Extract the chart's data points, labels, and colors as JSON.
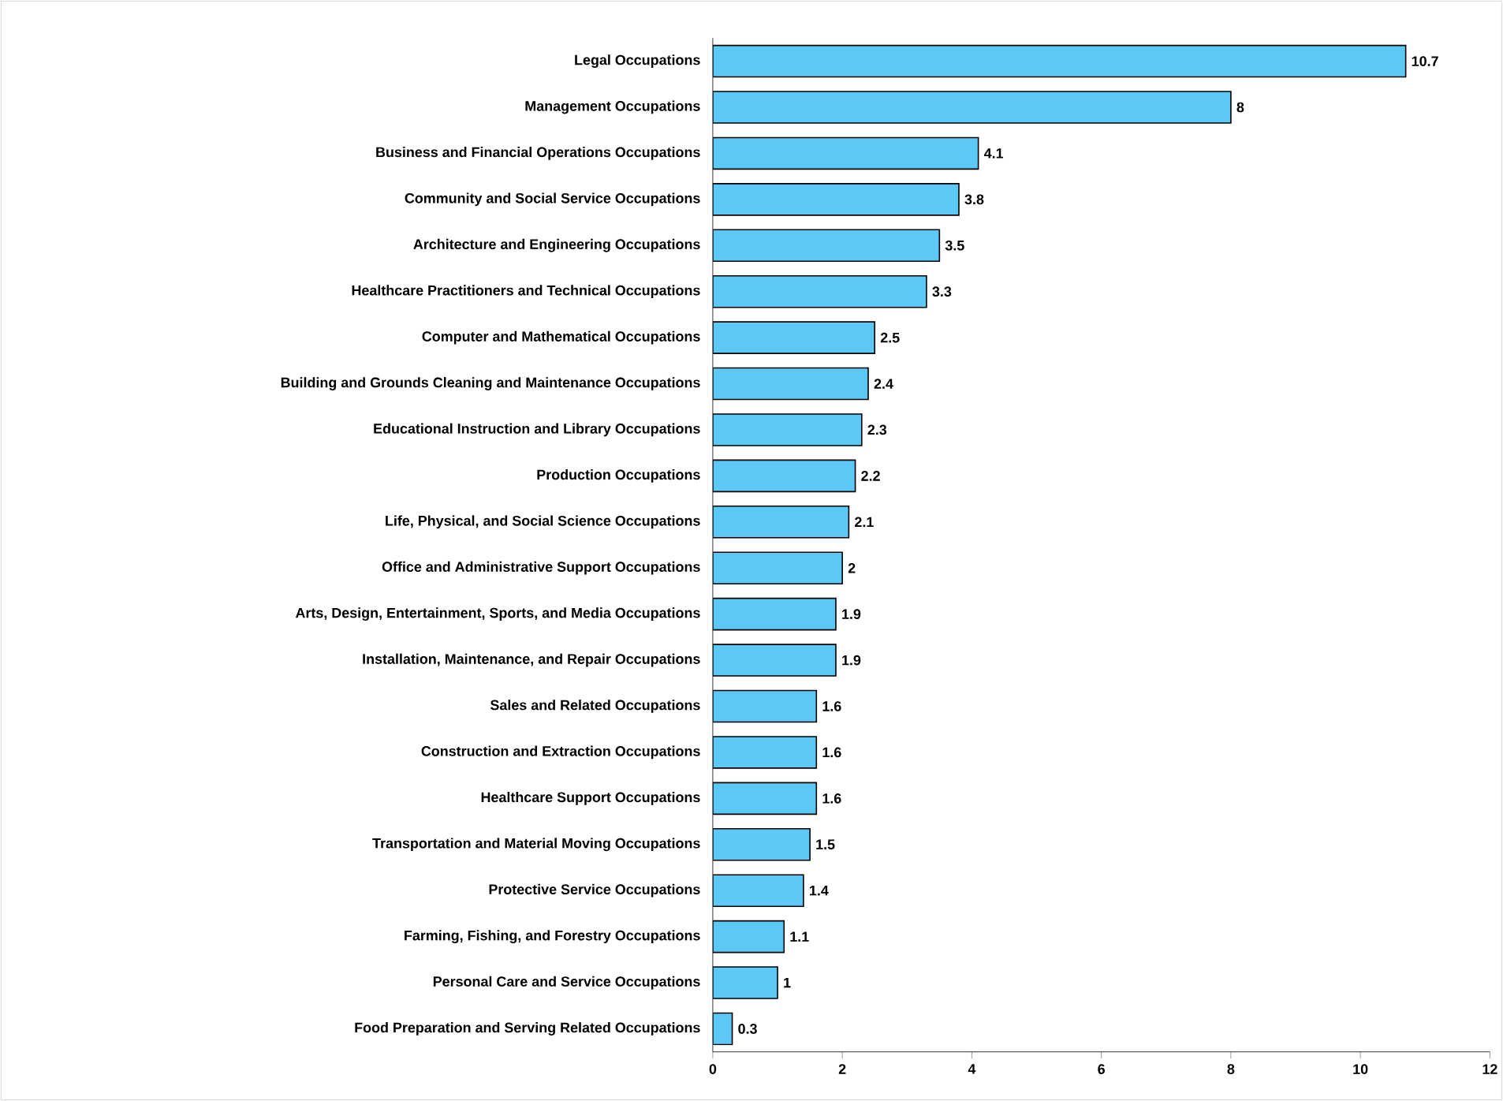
{
  "chart_data": {
    "type": "bar",
    "orientation": "horizontal",
    "data_labels": true,
    "color": "#5bc8f5",
    "categories": [
      "Legal Occupations",
      "Management Occupations",
      "Business and Financial Operations Occupations",
      "Community and Social Service Occupations",
      "Architecture and Engineering Occupations",
      "Healthcare Practitioners and Technical Occupations",
      "Computer and Mathematical Occupations",
      "Building and Grounds Cleaning and Maintenance Occupations",
      "Educational Instruction and Library Occupations",
      "Production Occupations",
      "Life, Physical, and Social Science Occupations",
      "Office and Administrative Support Occupations",
      "Arts, Design, Entertainment, Sports, and Media Occupations",
      "Installation, Maintenance, and Repair Occupations",
      "Sales and Related Occupations",
      "Construction and Extraction Occupations",
      "Healthcare Support Occupations",
      "Transportation and Material Moving Occupations",
      "Protective Service Occupations",
      "Farming, Fishing, and Forestry Occupations",
      "Personal Care and Service Occupations",
      "Food Preparation and Serving Related Occupations"
    ],
    "values": [
      10.7,
      8,
      4.1,
      3.8,
      3.5,
      3.3,
      2.5,
      2.4,
      2.3,
      2.2,
      2.1,
      2,
      1.9,
      1.9,
      1.6,
      1.6,
      1.6,
      1.5,
      1.4,
      1.1,
      1,
      0.3
    ],
    "xlim": [
      0,
      12
    ],
    "xticks": [
      0,
      2,
      4,
      6,
      8,
      10,
      12
    ]
  }
}
